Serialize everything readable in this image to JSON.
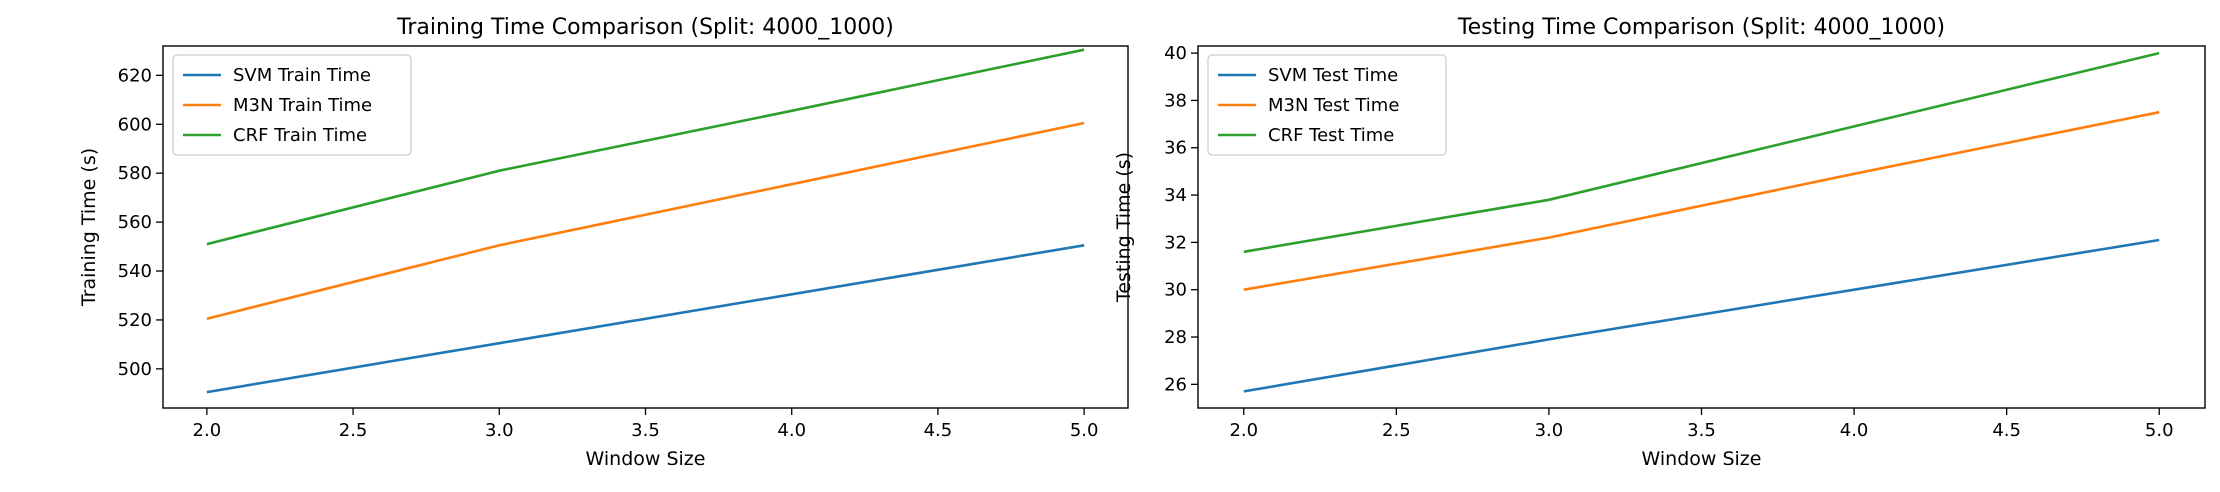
{
  "chart_data": [
    {
      "type": "line",
      "title": "Training Time Comparison (Split: 4000_1000)",
      "xlabel": "Window Size",
      "ylabel": "Training Time (s)",
      "x": [
        2,
        3,
        4,
        5
      ],
      "xlim": [
        1.85,
        5.15
      ],
      "ylim": [
        484,
        632
      ],
      "xticks": [
        "2.0",
        "2.5",
        "3.0",
        "3.5",
        "4.0",
        "4.5",
        "5.0"
      ],
      "yticks": [
        "500",
        "520",
        "540",
        "560",
        "580",
        "600",
        "620"
      ],
      "grid": false,
      "legend_position": "upper-left",
      "series": [
        {
          "name": "SVM Train Time",
          "color": "#1f77b4",
          "values": [
            490.5,
            510.5,
            530.5,
            550.5
          ]
        },
        {
          "name": "M3N Train Time",
          "color": "#ff7f0e",
          "values": [
            520.5,
            550.5,
            575.5,
            600.5
          ]
        },
        {
          "name": "CRF Train Time",
          "color": "#2ca02c",
          "values": [
            551,
            581,
            605.5,
            630.5
          ]
        }
      ]
    },
    {
      "type": "line",
      "title": "Testing Time Comparison (Split: 4000_1000)",
      "xlabel": "Window Size",
      "ylabel": "Testing Time (s)",
      "x": [
        2,
        3,
        4,
        5
      ],
      "xlim": [
        1.85,
        5.15
      ],
      "ylim": [
        25,
        40.3
      ],
      "xticks": [
        "2.0",
        "2.5",
        "3.0",
        "3.5",
        "4.0",
        "4.5",
        "5.0"
      ],
      "yticks": [
        "26",
        "28",
        "30",
        "32",
        "34",
        "36",
        "38",
        "40"
      ],
      "grid": false,
      "legend_position": "upper-left",
      "series": [
        {
          "name": "SVM Test Time",
          "color": "#1f77b4",
          "values": [
            25.7,
            27.9,
            30.0,
            32.1
          ]
        },
        {
          "name": "M3N Test Time",
          "color": "#ff7f0e",
          "values": [
            30.0,
            32.2,
            34.9,
            37.5
          ]
        },
        {
          "name": "CRF Test Time",
          "color": "#2ca02c",
          "values": [
            31.6,
            33.8,
            36.9,
            40.0
          ]
        }
      ]
    }
  ]
}
